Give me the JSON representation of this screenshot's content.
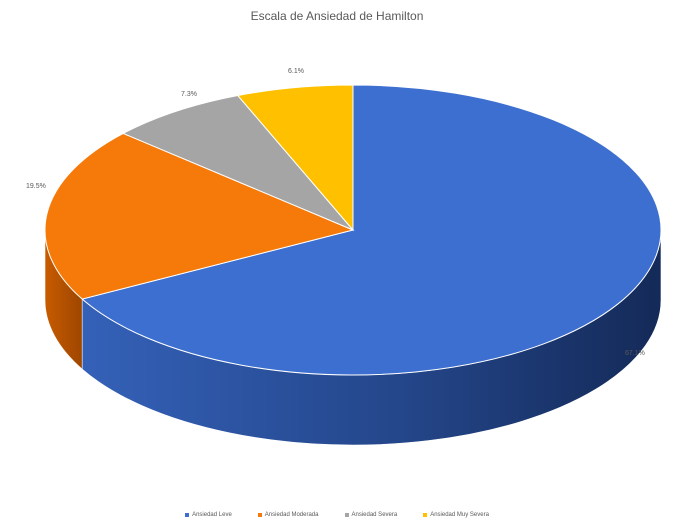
{
  "chart_data": {
    "type": "pie",
    "title": "Escala de Ansiedad de Hamilton",
    "categories": [
      "Ansiedad Leve",
      "Ansiedad Moderada",
      "Ansiedad Severa",
      "Ansiedad Muy Severa"
    ],
    "values": [
      67.1,
      19.5,
      7.3,
      6.1
    ],
    "data_labels": [
      "67.1%",
      "19.5%",
      "7.3%",
      "6.1%"
    ],
    "colors": [
      "#3d6fd0",
      "#f57a0a",
      "#a5a5a5",
      "#ffc000"
    ],
    "legend": "bottom",
    "style": "3d"
  }
}
